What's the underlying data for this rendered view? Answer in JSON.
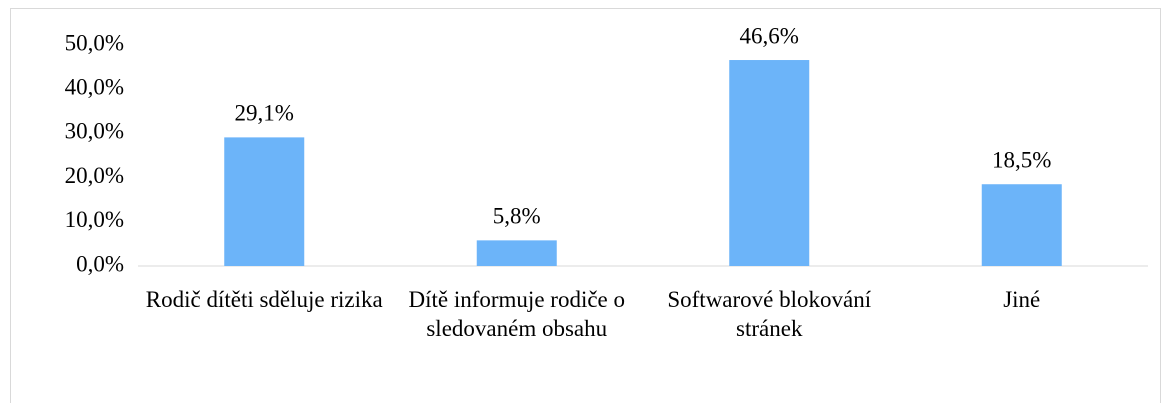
{
  "chart_data": {
    "type": "bar",
    "categories": [
      "Rodič dítěti sděluje rizika",
      "Dítě informuje rodiče o sledovaném obsahu",
      "Softwarové blokování stránek",
      "Jiné"
    ],
    "values": [
      29.1,
      5.8,
      46.6,
      18.5
    ],
    "value_labels": [
      "29,1%",
      "5,8%",
      "46,6%",
      "18,5%"
    ],
    "color": "#6cb4f9",
    "ylim": [
      0,
      50
    ],
    "yticks": [
      {
        "value": 0,
        "label": "0,0%"
      },
      {
        "value": 10,
        "label": "10,0%"
      },
      {
        "value": 20,
        "label": "20,0%"
      },
      {
        "value": 30,
        "label": "30,0%"
      },
      {
        "value": 40,
        "label": "40,0%"
      },
      {
        "value": 50,
        "label": "50,0%"
      }
    ],
    "grid": false
  }
}
